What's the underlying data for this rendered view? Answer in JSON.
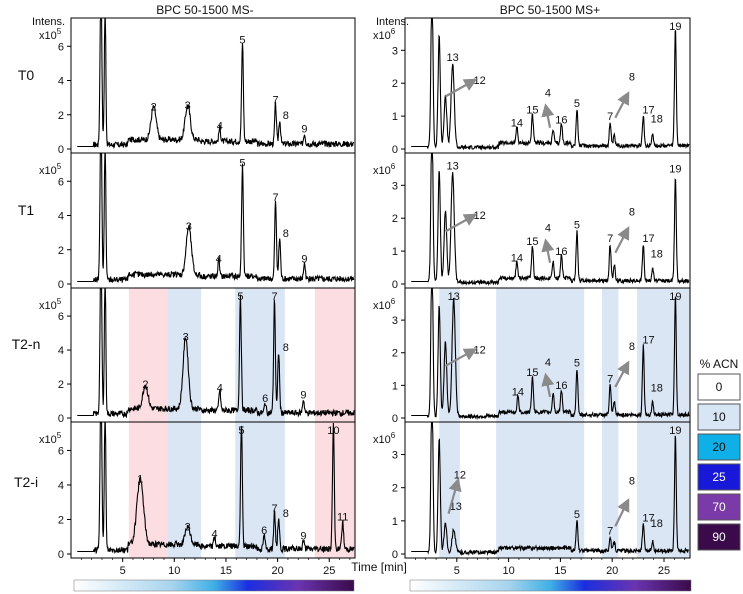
{
  "figure": {
    "intens_label": "Intens.",
    "time_label": "Time [min]"
  },
  "chart_data": [
    {
      "type": "line",
      "title": "BPC 50-1500 MS-",
      "ylabel": "Intens.",
      "xlabel": "Time [min]",
      "xlim": [
        0,
        27.5
      ],
      "x_ticks": [
        "5",
        "10",
        "15",
        "20",
        "25"
      ],
      "rows": [
        {
          "name": "T0",
          "scale": "x10^5",
          "ylim": [
            0,
            7.3
          ],
          "y_ticks": [
            "0",
            "2",
            "4",
            "6"
          ],
          "peaks": [
            {
              "label": "2",
              "rt": 8.0,
              "height": 1.9
            },
            {
              "label": "3",
              "rt": 11.3,
              "height": 2.0
            },
            {
              "label": "4",
              "rt": 14.4,
              "height": 0.8
            },
            {
              "label": "5",
              "rt": 16.6,
              "height": 5.8
            },
            {
              "label": "7",
              "rt": 19.8,
              "height": 2.3
            },
            {
              "label": "8",
              "rt": 20.2,
              "height": 1.4
            },
            {
              "label": "9",
              "rt": 22.6,
              "height": 0.6
            }
          ]
        },
        {
          "name": "T1",
          "scale": "x10^5",
          "ylim": [
            0,
            7.3
          ],
          "y_ticks": [
            "0",
            "2",
            "4",
            "6"
          ],
          "peaks": [
            {
              "label": "3",
              "rt": 11.4,
              "height": 2.8
            },
            {
              "label": "4",
              "rt": 14.3,
              "height": 0.9
            },
            {
              "label": "5",
              "rt": 16.6,
              "height": 6.5
            },
            {
              "label": "7",
              "rt": 19.8,
              "height": 4.5
            },
            {
              "label": "8",
              "rt": 20.2,
              "height": 2.4
            },
            {
              "label": "9",
              "rt": 22.6,
              "height": 0.9
            }
          ]
        },
        {
          "name": "T2-n",
          "scale": "x10^5",
          "ylim": [
            0,
            7.3
          ],
          "y_ticks": [
            "0",
            "2",
            "4",
            "6"
          ],
          "peaks": [
            {
              "label": "2",
              "rt": 7.2,
              "height": 1.4
            },
            {
              "label": "3",
              "rt": 11.1,
              "height": 4.2
            },
            {
              "label": "4",
              "rt": 14.4,
              "height": 1.2
            },
            {
              "label": "5",
              "rt": 16.4,
              "height": 6.8
            },
            {
              "label": "6",
              "rt": 18.8,
              "height": 0.6
            },
            {
              "label": "7",
              "rt": 19.7,
              "height": 6.7
            },
            {
              "label": "8",
              "rt": 20.1,
              "height": 3.6
            },
            {
              "label": "9",
              "rt": 22.5,
              "height": 0.8
            }
          ]
        },
        {
          "name": "T2-i",
          "scale": "x10^5",
          "ylim": [
            0,
            7.3
          ],
          "y_ticks": [
            "0",
            "2",
            "4",
            "6"
          ],
          "peaks": [
            {
              "label": "1",
              "rt": 6.7,
              "height": 3.8
            },
            {
              "label": "3",
              "rt": 11.3,
              "height": 1.0
            },
            {
              "label": "4",
              "rt": 13.9,
              "height": 0.6
            },
            {
              "label": "5",
              "rt": 16.5,
              "height": 7.0
            },
            {
              "label": "6",
              "rt": 18.7,
              "height": 0.8
            },
            {
              "label": "7",
              "rt": 19.7,
              "height": 2.1
            },
            {
              "label": "8",
              "rt": 20.1,
              "height": 1.8
            },
            {
              "label": "9",
              "rt": 22.5,
              "height": 0.5
            },
            {
              "label": "10",
              "rt": 25.4,
              "height": 7.3
            },
            {
              "label": "11",
              "rt": 26.3,
              "height": 1.6
            }
          ]
        }
      ]
    },
    {
      "type": "line",
      "title": "BPC 50-1500 MS+",
      "ylabel": "Intens.",
      "xlabel": "Time [min]",
      "xlim": [
        0,
        27.5
      ],
      "x_ticks": [
        "5",
        "10",
        "15",
        "20",
        "25"
      ],
      "rows": [
        {
          "name": "T0",
          "scale": "x10^6",
          "ylim": [
            0,
            3.8
          ],
          "y_ticks": [
            "0",
            "1",
            "2",
            "3"
          ],
          "peaks": [
            {
              "label": "13",
              "rt": 4.6,
              "height": 2.5
            },
            {
              "label": "12",
              "rt": 3.9,
              "height": 1.6
            },
            {
              "label": "14",
              "rt": 10.8,
              "height": 0.5
            },
            {
              "label": "15",
              "rt": 12.3,
              "height": 0.9
            },
            {
              "label": "4",
              "rt": 14.3,
              "height": 0.4
            },
            {
              "label": "16",
              "rt": 15.1,
              "height": 0.6
            },
            {
              "label": "5",
              "rt": 16.6,
              "height": 1.1
            },
            {
              "label": "7",
              "rt": 19.8,
              "height": 0.7
            },
            {
              "label": "8",
              "rt": 20.2,
              "height": 0.3
            },
            {
              "label": "17",
              "rt": 23.0,
              "height": 0.9
            },
            {
              "label": "18",
              "rt": 23.9,
              "height": 0.4
            },
            {
              "label": "19",
              "rt": 26.1,
              "height": 3.6
            }
          ]
        },
        {
          "name": "T1",
          "scale": "x10^6",
          "ylim": [
            0,
            3.8
          ],
          "y_ticks": [
            "0",
            "1",
            "2",
            "3"
          ],
          "peaks": [
            {
              "label": "13",
              "rt": 4.6,
              "height": 3.3
            },
            {
              "label": "12",
              "rt": 3.9,
              "height": 2.2
            },
            {
              "label": "14",
              "rt": 10.8,
              "height": 0.5
            },
            {
              "label": "15",
              "rt": 12.3,
              "height": 1.0
            },
            {
              "label": "4",
              "rt": 14.3,
              "height": 0.5
            },
            {
              "label": "16",
              "rt": 15.1,
              "height": 0.7
            },
            {
              "label": "5",
              "rt": 16.6,
              "height": 1.5
            },
            {
              "label": "7",
              "rt": 19.8,
              "height": 1.1
            },
            {
              "label": "8",
              "rt": 20.2,
              "height": 0.5
            },
            {
              "label": "17",
              "rt": 23.0,
              "height": 1.1
            },
            {
              "label": "18",
              "rt": 23.9,
              "height": 0.4
            },
            {
              "label": "19",
              "rt": 26.1,
              "height": 3.2
            }
          ]
        },
        {
          "name": "T2-n",
          "scale": "x10^6",
          "ylim": [
            0,
            3.8
          ],
          "y_ticks": [
            "0",
            "1",
            "2",
            "3"
          ],
          "peaks": [
            {
              "label": "13",
              "rt": 4.7,
              "height": 3.6
            },
            {
              "label": "12",
              "rt": 3.9,
              "height": 2.3
            },
            {
              "label": "14",
              "rt": 10.9,
              "height": 0.5
            },
            {
              "label": "15",
              "rt": 12.3,
              "height": 1.1
            },
            {
              "label": "4",
              "rt": 14.3,
              "height": 0.6
            },
            {
              "label": "16",
              "rt": 15.1,
              "height": 0.7
            },
            {
              "label": "5",
              "rt": 16.6,
              "height": 1.4
            },
            {
              "label": "7",
              "rt": 19.8,
              "height": 0.9
            },
            {
              "label": "8",
              "rt": 20.2,
              "height": 0.4
            },
            {
              "label": "17",
              "rt": 23.0,
              "height": 2.1
            },
            {
              "label": "18",
              "rt": 23.9,
              "height": 0.4
            },
            {
              "label": "19",
              "rt": 26.1,
              "height": 3.7
            }
          ]
        },
        {
          "name": "T2-i",
          "scale": "x10^6",
          "ylim": [
            0,
            3.8
          ],
          "y_ticks": [
            "0",
            "1",
            "2",
            "3"
          ],
          "peaks": [
            {
              "label": "12",
              "rt": 4.0,
              "height": 0.9
            },
            {
              "label": "13",
              "rt": 4.7,
              "height": 0.7
            },
            {
              "label": "5",
              "rt": 16.6,
              "height": 0.9
            },
            {
              "label": "7",
              "rt": 19.8,
              "height": 0.4
            },
            {
              "label": "8",
              "rt": 20.2,
              "height": 0.3
            },
            {
              "label": "17",
              "rt": 23.0,
              "height": 0.8
            },
            {
              "label": "18",
              "rt": 23.9,
              "height": 0.3
            },
            {
              "label": "19",
              "rt": 26.1,
              "height": 3.5
            }
          ]
        }
      ]
    }
  ],
  "gradient_bands": {
    "MS-": [
      {
        "from": 5.6,
        "to": 9.3,
        "acn": 0
      },
      {
        "from": 9.3,
        "to": 12.6,
        "acn": 10
      },
      {
        "from": 15.9,
        "to": 20.7,
        "acn": 10
      },
      {
        "from": 23.6,
        "to": 27.5,
        "acn": 0
      }
    ],
    "MS+": [
      {
        "from": 3.3,
        "to": 5.3,
        "acn": 10
      },
      {
        "from": 8.8,
        "to": 17.3,
        "acn": 10
      },
      {
        "from": 19.0,
        "to": 20.6,
        "acn": 10
      },
      {
        "from": 22.4,
        "to": 27.5,
        "acn": 10
      }
    ]
  },
  "legend": {
    "title": "% ACN",
    "entries": [
      {
        "label": "0",
        "color": "#ffffff"
      },
      {
        "label": "10",
        "color": "#d8e5f5"
      },
      {
        "label": "20",
        "color": "#0fb0e8"
      },
      {
        "label": "25",
        "color": "#1818d8"
      },
      {
        "label": "70",
        "color": "#7a3aa8"
      },
      {
        "label": "90",
        "color": "#3a0a4a"
      }
    ]
  },
  "colors": {
    "band_pink": "#fbdde2",
    "band_blue": "#dbe6f5",
    "trace": "#000000",
    "arrow": "#8a8a8a"
  }
}
